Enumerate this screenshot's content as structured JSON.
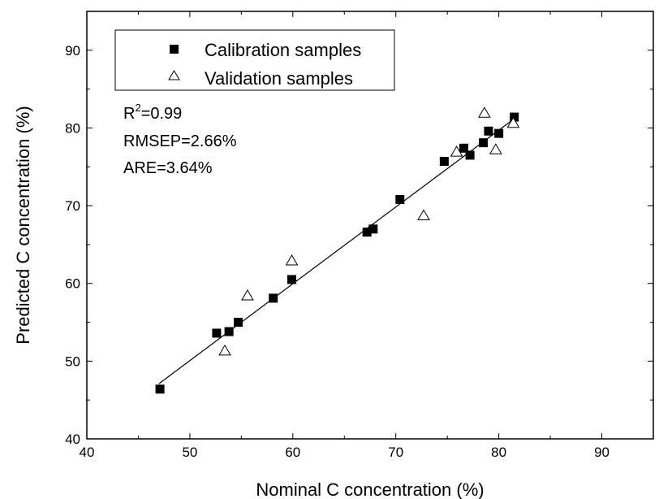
{
  "chart_data": {
    "type": "scatter",
    "title": "",
    "xlabel": "Nominal C concentration (%)",
    "ylabel": "Predicted C concentration (%)",
    "xlim": [
      40,
      95
    ],
    "ylim": [
      40,
      95
    ],
    "xticks": [
      40,
      50,
      60,
      70,
      80,
      90
    ],
    "yticks": [
      40,
      50,
      60,
      70,
      80,
      90
    ],
    "grid": false,
    "legend_position": "top-left",
    "series": [
      {
        "name": "Calibration samples",
        "marker": "filled-square",
        "color": "#000000",
        "points": [
          [
            47.1,
            46.4
          ],
          [
            52.6,
            53.6
          ],
          [
            53.8,
            53.8
          ],
          [
            54.7,
            55.0
          ],
          [
            58.1,
            58.1
          ],
          [
            59.9,
            60.5
          ],
          [
            67.2,
            66.6
          ],
          [
            67.8,
            67.0
          ],
          [
            70.4,
            70.8
          ],
          [
            74.7,
            75.7
          ],
          [
            76.6,
            77.4
          ],
          [
            77.2,
            76.5
          ],
          [
            78.5,
            78.1
          ],
          [
            79.0,
            79.6
          ],
          [
            80.0,
            79.3
          ],
          [
            81.5,
            81.4
          ]
        ]
      },
      {
        "name": "Validation samples",
        "marker": "open-triangle",
        "color": "#000000",
        "points": [
          [
            53.4,
            51.3
          ],
          [
            55.6,
            58.4
          ],
          [
            59.9,
            62.9
          ],
          [
            72.7,
            68.7
          ],
          [
            75.9,
            76.9
          ],
          [
            78.6,
            81.9
          ],
          [
            79.7,
            77.2
          ],
          [
            81.4,
            80.6
          ]
        ]
      }
    ],
    "fit_line": {
      "x": [
        47.0,
        81.5
      ],
      "y": [
        47.1,
        81.2
      ]
    },
    "annotations": [
      {
        "prefix": "R",
        "sup": "2",
        "suffix": "=0.99"
      },
      {
        "text": "RMSEP=2.66%"
      },
      {
        "text": "ARE=3.64%"
      }
    ]
  }
}
